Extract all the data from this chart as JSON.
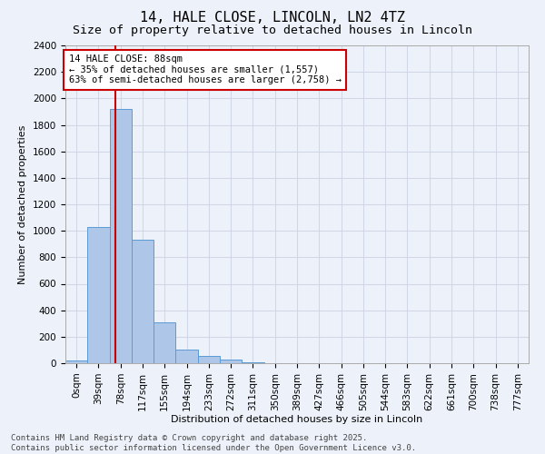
{
  "title_line1": "14, HALE CLOSE, LINCOLN, LN2 4TZ",
  "title_line2": "Size of property relative to detached houses in Lincoln",
  "xlabel": "Distribution of detached houses by size in Lincoln",
  "ylabel": "Number of detached properties",
  "bar_labels": [
    "0sqm",
    "39sqm",
    "78sqm",
    "117sqm",
    "155sqm",
    "194sqm",
    "233sqm",
    "272sqm",
    "311sqm",
    "350sqm",
    "389sqm",
    "427sqm",
    "466sqm",
    "505sqm",
    "544sqm",
    "583sqm",
    "622sqm",
    "661sqm",
    "700sqm",
    "738sqm",
    "777sqm"
  ],
  "bar_values": [
    20,
    1030,
    1920,
    930,
    310,
    105,
    55,
    30,
    5,
    0,
    0,
    0,
    0,
    0,
    0,
    0,
    0,
    0,
    0,
    0,
    0
  ],
  "bar_color": "#aec6e8",
  "bar_edge_color": "#5b9bd5",
  "grid_color": "#d0d8e8",
  "background_color": "#edf2fa",
  "annotation_text": "14 HALE CLOSE: 88sqm\n← 35% of detached houses are smaller (1,557)\n63% of semi-detached houses are larger (2,758) →",
  "annotation_box_color": "#ffffff",
  "annotation_box_edge": "#cc0000",
  "vline_x": 2.25,
  "vline_color": "#cc0000",
  "ylim": [
    0,
    2400
  ],
  "yticks": [
    0,
    200,
    400,
    600,
    800,
    1000,
    1200,
    1400,
    1600,
    1800,
    2000,
    2200,
    2400
  ],
  "footer_text": "Contains HM Land Registry data © Crown copyright and database right 2025.\nContains public sector information licensed under the Open Government Licence v3.0.",
  "title_fontsize": 11,
  "subtitle_fontsize": 9.5,
  "axis_label_fontsize": 8,
  "tick_fontsize": 7.5,
  "annotation_fontsize": 7.5,
  "footer_fontsize": 6.5
}
